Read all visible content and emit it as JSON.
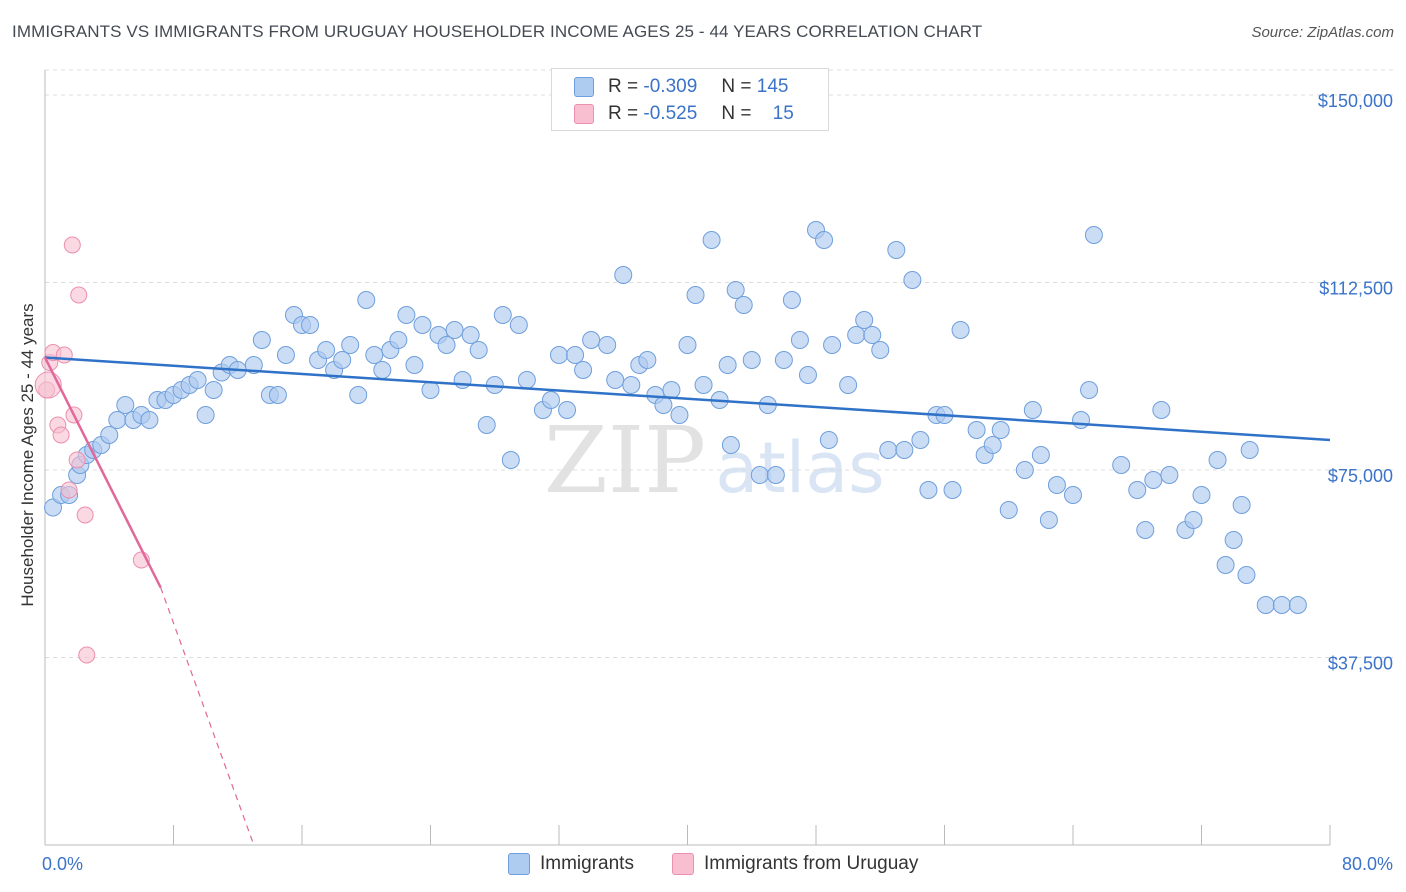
{
  "header": {
    "title": "IMMIGRANTS VS IMMIGRANTS FROM URUGUAY HOUSEHOLDER INCOME AGES 25 - 44 YEARS CORRELATION CHART",
    "source": "Source: ZipAtlas.com"
  },
  "legend": {
    "r_label": "R =",
    "n_label": "N =",
    "series": [
      {
        "name": "Immigrants",
        "r": "-0.309",
        "n": "145"
      },
      {
        "name": "Immigrants from Uruguay",
        "r": "-0.525",
        "n": "15"
      }
    ]
  },
  "watermark": {
    "zip": "ZIP",
    "atlas": "atlas"
  },
  "colors": {
    "blue_fill": "#aecbf0",
    "blue_stroke": "#6f9fdc",
    "blue_line": "#2f72c8",
    "pink_fill": "#f7bfd0",
    "pink_stroke": "#ec8fb0",
    "pink_line": "#e2679a",
    "axis_text": "#3b73c8",
    "grid": "#dcdcdc"
  },
  "chart_data": {
    "type": "scatter",
    "title": "IMMIGRANTS VS IMMIGRANTS FROM URUGUAY HOUSEHOLDER INCOME AGES 25 - 44 YEARS CORRELATION CHART",
    "xlabel": "",
    "ylabel": "Householder Income Ages 25 - 44 years",
    "xlim": [
      0,
      80
    ],
    "ylim": [
      0,
      155000
    ],
    "x_tick_labels": [
      {
        "value": 0,
        "label": "0.0%"
      },
      {
        "value": 80,
        "label": "80.0%"
      }
    ],
    "y_tick_labels": [
      {
        "value": 37500,
        "label": "$37,500"
      },
      {
        "value": 75000,
        "label": "$75,000"
      },
      {
        "value": 112500,
        "label": "$112,500"
      },
      {
        "value": 150000,
        "label": "$150,000"
      }
    ],
    "x_minor_ticks": [
      8,
      16,
      24,
      32,
      40,
      48,
      56,
      64,
      72,
      80
    ],
    "grid": true,
    "series": [
      {
        "name": "Immigrants",
        "trend": {
          "x": [
            0,
            80
          ],
          "y": [
            97500,
            81000
          ]
        },
        "points": [
          [
            0.5,
            67500
          ],
          [
            1,
            70000
          ],
          [
            1.5,
            70000
          ],
          [
            2,
            74000
          ],
          [
            2.2,
            76000
          ],
          [
            2.6,
            78000
          ],
          [
            3,
            79000
          ],
          [
            3.5,
            80000
          ],
          [
            4,
            82000
          ],
          [
            4.5,
            85000
          ],
          [
            5,
            88000
          ],
          [
            5.5,
            85000
          ],
          [
            6,
            86000
          ],
          [
            6.5,
            85000
          ],
          [
            7,
            89000
          ],
          [
            7.5,
            89000
          ],
          [
            8,
            90000
          ],
          [
            8.5,
            91000
          ],
          [
            9,
            92000
          ],
          [
            9.5,
            93000
          ],
          [
            10,
            86000
          ],
          [
            10.5,
            91000
          ],
          [
            11,
            94500
          ],
          [
            11.5,
            96000
          ],
          [
            12,
            95000
          ],
          [
            13,
            96000
          ],
          [
            13.5,
            101000
          ],
          [
            14,
            90000
          ],
          [
            14.5,
            90000
          ],
          [
            15,
            98000
          ],
          [
            15.5,
            106000
          ],
          [
            16,
            104000
          ],
          [
            16.5,
            104000
          ],
          [
            17,
            97000
          ],
          [
            17.5,
            99000
          ],
          [
            18,
            95000
          ],
          [
            18.5,
            97000
          ],
          [
            19,
            100000
          ],
          [
            19.5,
            90000
          ],
          [
            20,
            109000
          ],
          [
            20.5,
            98000
          ],
          [
            21,
            95000
          ],
          [
            21.5,
            99000
          ],
          [
            22,
            101000
          ],
          [
            22.5,
            106000
          ],
          [
            23,
            96000
          ],
          [
            23.5,
            104000
          ],
          [
            24,
            91000
          ],
          [
            24.5,
            102000
          ],
          [
            25,
            100000
          ],
          [
            25.5,
            103000
          ],
          [
            26,
            93000
          ],
          [
            26.5,
            102000
          ],
          [
            27,
            99000
          ],
          [
            27.5,
            84000
          ],
          [
            28,
            92000
          ],
          [
            28.5,
            106000
          ],
          [
            29,
            77000
          ],
          [
            29.5,
            104000
          ],
          [
            30,
            93000
          ],
          [
            31,
            87000
          ],
          [
            31.5,
            89000
          ],
          [
            32,
            98000
          ],
          [
            32.5,
            87000
          ],
          [
            33,
            98000
          ],
          [
            33.5,
            95000
          ],
          [
            34,
            101000
          ],
          [
            35,
            100000
          ],
          [
            35.5,
            93000
          ],
          [
            36,
            114000
          ],
          [
            36.5,
            92000
          ],
          [
            37,
            96000
          ],
          [
            37.5,
            97000
          ],
          [
            38,
            90000
          ],
          [
            38.5,
            88000
          ],
          [
            39,
            91000
          ],
          [
            39.5,
            86000
          ],
          [
            40,
            100000
          ],
          [
            40.5,
            110000
          ],
          [
            41,
            92000
          ],
          [
            41.5,
            121000
          ],
          [
            42,
            89000
          ],
          [
            42.5,
            96000
          ],
          [
            42.7,
            80000
          ],
          [
            43,
            111000
          ],
          [
            43.5,
            108000
          ],
          [
            44,
            97000
          ],
          [
            44.5,
            74000
          ],
          [
            45,
            88000
          ],
          [
            45.5,
            74000
          ],
          [
            46,
            97000
          ],
          [
            46.5,
            109000
          ],
          [
            47,
            101000
          ],
          [
            47.5,
            94000
          ],
          [
            48,
            123000
          ],
          [
            48.5,
            121000
          ],
          [
            48.8,
            81000
          ],
          [
            49,
            100000
          ],
          [
            50,
            92000
          ],
          [
            50.5,
            102000
          ],
          [
            51,
            105000
          ],
          [
            51.5,
            102000
          ],
          [
            52,
            99000
          ],
          [
            52.5,
            79000
          ],
          [
            53,
            119000
          ],
          [
            53.5,
            79000
          ],
          [
            54,
            113000
          ],
          [
            54.5,
            81000
          ],
          [
            55,
            71000
          ],
          [
            55.5,
            86000
          ],
          [
            56,
            86000
          ],
          [
            56.5,
            71000
          ],
          [
            57,
            103000
          ],
          [
            58,
            83000
          ],
          [
            58.5,
            78000
          ],
          [
            59,
            80000
          ],
          [
            59.5,
            83000
          ],
          [
            60,
            67000
          ],
          [
            61,
            75000
          ],
          [
            61.5,
            87000
          ],
          [
            62,
            78000
          ],
          [
            62.5,
            65000
          ],
          [
            63,
            72000
          ],
          [
            64,
            70000
          ],
          [
            64.5,
            85000
          ],
          [
            65,
            91000
          ],
          [
            65.3,
            122000
          ],
          [
            67,
            76000
          ],
          [
            68,
            71000
          ],
          [
            68.5,
            63000
          ],
          [
            69,
            73000
          ],
          [
            69.5,
            87000
          ],
          [
            70,
            74000
          ],
          [
            71,
            63000
          ],
          [
            71.5,
            65000
          ],
          [
            72,
            70000
          ],
          [
            73,
            77000
          ],
          [
            73.5,
            56000
          ],
          [
            74,
            61000
          ],
          [
            74.5,
            68000
          ],
          [
            74.8,
            54000
          ],
          [
            75,
            79000
          ],
          [
            76,
            48000
          ],
          [
            77,
            48000
          ],
          [
            78,
            48000
          ]
        ]
      },
      {
        "name": "Immigrants from Uruguay",
        "trend": {
          "x": [
            0,
            7.2
          ],
          "y": [
            97500,
            51500
          ]
        },
        "trend_extension": {
          "x": [
            7.2,
            13
          ],
          "y": [
            51500,
            0
          ]
        },
        "points": [
          [
            0.1,
            91000
          ],
          [
            0.3,
            96500
          ],
          [
            0.5,
            98500
          ],
          [
            0.8,
            84000
          ],
          [
            1,
            82000
          ],
          [
            1.2,
            98000
          ],
          [
            1.5,
            71000
          ],
          [
            1.7,
            120000
          ],
          [
            1.8,
            86000
          ],
          [
            2,
            77000
          ],
          [
            2.1,
            110000
          ],
          [
            2.5,
            66000
          ],
          [
            2.6,
            38000
          ],
          [
            6,
            57000
          ],
          [
            0.2,
            92000
          ]
        ]
      }
    ]
  }
}
